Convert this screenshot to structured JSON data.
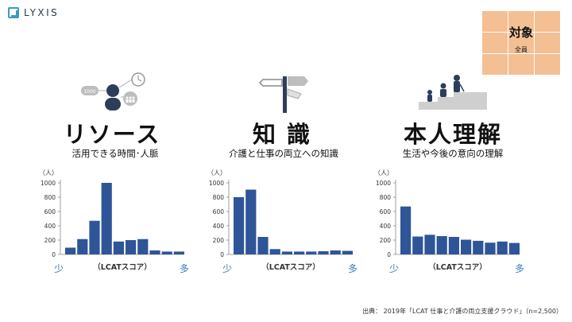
{
  "logo": {
    "text": "LYXIS"
  },
  "target": {
    "title": "対象",
    "sub": "全員"
  },
  "source": "出典： 2019年「LCAT 仕事と介護の両立支援クラウド」（n=2,500）",
  "colors": {
    "bar": "#2e5597",
    "accent": "#3a7fc1",
    "target": "#f4bf93"
  },
  "sections": [
    {
      "title": "リソース",
      "subtitle": "活用できる時間･人脈",
      "icon": "resource-icon"
    },
    {
      "title": "知 識",
      "subtitle": "介護と仕事の両立への知識",
      "icon": "signpost-icon"
    },
    {
      "title": "本人理解",
      "subtitle": "生活や今後の意向の理解",
      "icon": "family-stairs-icon"
    }
  ],
  "chart_data": [
    {
      "type": "bar",
      "ylabel": "（人）",
      "xlabel": "（LCATスコア）",
      "x_low": "少",
      "x_high": "多",
      "ylim": [
        0,
        1000
      ],
      "yticks": [
        0,
        200,
        400,
        600,
        800,
        1000
      ],
      "values": [
        95,
        215,
        470,
        1000,
        180,
        200,
        215,
        55,
        40,
        40
      ]
    },
    {
      "type": "bar",
      "ylabel": "（人）",
      "xlabel": "（LCATスコア）",
      "x_low": "少",
      "x_high": "多",
      "ylim": [
        0,
        1000
      ],
      "yticks": [
        0,
        200,
        400,
        600,
        800,
        1000
      ],
      "values": [
        800,
        905,
        245,
        75,
        40,
        40,
        40,
        45,
        55,
        50
      ]
    },
    {
      "type": "bar",
      "ylabel": "（人）",
      "xlabel": "（LCATスコア）",
      "x_low": "少",
      "x_high": "多",
      "ylim": [
        0,
        1000
      ],
      "yticks": [
        0,
        200,
        400,
        600,
        800,
        1000
      ],
      "values": [
        670,
        250,
        275,
        255,
        245,
        205,
        190,
        165,
        180,
        160
      ]
    }
  ]
}
